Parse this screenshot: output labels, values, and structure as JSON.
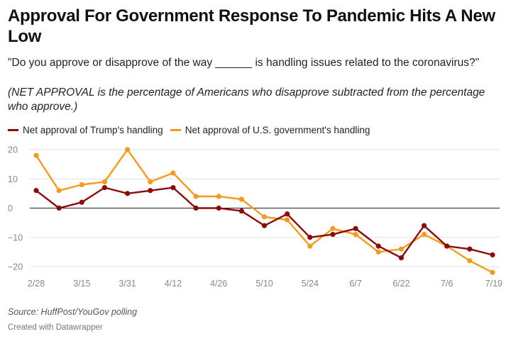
{
  "title": "Approval For Government Response To Pandemic Hits A New Low",
  "subtitle": "\"Do you approve or disapprove of the way ______ is handling issues related to the coronavirus?\"",
  "note": "(NET APPROVAL is the percentage of Americans who disapprove subtracted from the percentage who approve.)",
  "source": "Source: HuffPost/YouGov polling",
  "credit": "Created with Datawrapper",
  "colors": {
    "trump": "#8b0a0a",
    "government": "#f59a1e",
    "grid": "#e3e3e3",
    "zero": "#222222"
  },
  "chart_data": {
    "type": "line",
    "x_tick_labels": [
      "2/28",
      "3/15",
      "3/31",
      "4/12",
      "4/26",
      "5/10",
      "5/24",
      "6/7",
      "6/22",
      "7/6",
      "7/19"
    ],
    "x_tick_index": [
      0,
      2,
      4,
      6,
      8,
      10,
      12,
      14,
      16,
      18,
      20
    ],
    "y_ticks": [
      20,
      10,
      0,
      -10,
      -20
    ],
    "ylim": [
      -20,
      20
    ],
    "series": [
      {
        "name": "Net approval of Trump's handling",
        "key": "trump",
        "values": [
          6,
          0,
          2,
          7,
          5,
          6,
          7,
          0,
          0,
          -1,
          -6,
          -2,
          -10,
          -9,
          -7,
          -13,
          -17,
          -6,
          -13,
          -14,
          -16
        ]
      },
      {
        "name": "Net approval of U.S. government's handling",
        "key": "government",
        "values": [
          18,
          6,
          8,
          9,
          20,
          9,
          12,
          4,
          4,
          3,
          -3,
          -4,
          -13,
          -7,
          -9,
          -15,
          -14,
          -9,
          -13,
          -18,
          -22
        ]
      }
    ]
  }
}
